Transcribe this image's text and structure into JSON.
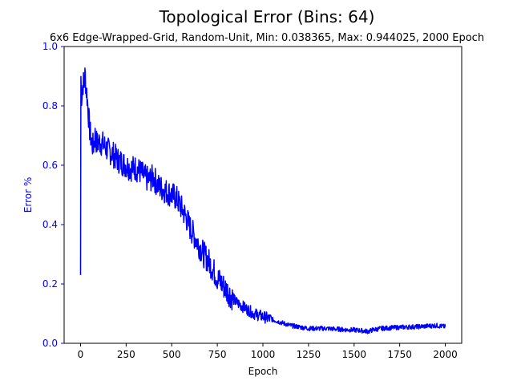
{
  "chart_data": {
    "type": "line",
    "title": "Topological Error (Bins: 64)",
    "subtitle": "6x6 Edge-Wrapped-Grid, Random-Unit, Min: 0.038365, Max: 0.944025, 2000 Epoch",
    "xlabel": "Epoch",
    "ylabel": "Error %",
    "xlim": [
      -90,
      2090
    ],
    "ylim": [
      0.0,
      1.0
    ],
    "xticks": [
      "0",
      "250",
      "500",
      "750",
      "1000",
      "1250",
      "1500",
      "1750",
      "2000"
    ],
    "yticks": [
      "0.0",
      "0.2",
      "0.4",
      "0.6",
      "0.8",
      "1.0"
    ],
    "grid": false,
    "legend": "none",
    "colors": {
      "line": "#0000ff",
      "ylabel": "#0000ff",
      "yticks": "#0000ff"
    },
    "series": [
      {
        "x": [
          0,
          2,
          5,
          10,
          15,
          20,
          25,
          30,
          35,
          40,
          50,
          60,
          70,
          80,
          90,
          100,
          125,
          150,
          175,
          200,
          225,
          250,
          275,
          300,
          325,
          350,
          375,
          400,
          425,
          450,
          475,
          500,
          525,
          550,
          575,
          600,
          625,
          650,
          675,
          700,
          725,
          750,
          775,
          800,
          825,
          850,
          875,
          900,
          950,
          1000,
          1050,
          1100,
          1150,
          1200,
          1250,
          1300,
          1350,
          1400,
          1450,
          1500,
          1550,
          1580,
          1600,
          1650,
          1700,
          1750,
          1800,
          1850,
          1900,
          1950,
          2000
        ],
        "values": [
          0.23,
          0.9,
          0.83,
          0.86,
          0.88,
          0.87,
          0.91,
          0.86,
          0.84,
          0.8,
          0.72,
          0.68,
          0.66,
          0.7,
          0.67,
          0.68,
          0.67,
          0.65,
          0.64,
          0.62,
          0.61,
          0.6,
          0.59,
          0.59,
          0.58,
          0.56,
          0.55,
          0.56,
          0.53,
          0.52,
          0.51,
          0.5,
          0.49,
          0.46,
          0.43,
          0.39,
          0.36,
          0.33,
          0.3,
          0.28,
          0.25,
          0.22,
          0.2,
          0.18,
          0.16,
          0.14,
          0.13,
          0.12,
          0.1,
          0.09,
          0.08,
          0.07,
          0.06,
          0.055,
          0.05,
          0.05,
          0.05,
          0.048,
          0.046,
          0.045,
          0.042,
          0.04,
          0.045,
          0.05,
          0.052,
          0.054,
          0.055,
          0.056,
          0.058,
          0.06,
          0.056
        ]
      }
    ]
  }
}
